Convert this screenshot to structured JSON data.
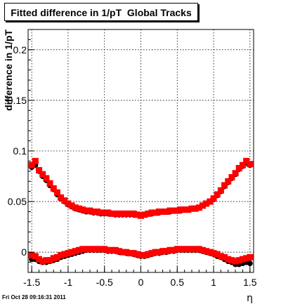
{
  "title": "Fitted difference in 1/pT  Global Tracks",
  "footer": "Fri Oct 28 09:16:31 2011",
  "chart_data": {
    "type": "scatter",
    "title": "Fitted difference in 1/pT  Global Tracks",
    "xlabel": "η",
    "ylabel": "difference in 1/pT",
    "xlim": [
      -1.55,
      1.55
    ],
    "ylim": [
      -0.02,
      0.22
    ],
    "xticks": [
      -1.5,
      -1,
      -0.5,
      0,
      0.5,
      1,
      1.5
    ],
    "xtick_labels": [
      "-1.5",
      "-1",
      "-0.5",
      "0",
      "0.5",
      "1",
      "1.5"
    ],
    "yticks": [
      0,
      0.05,
      0.1,
      0.15,
      0.2
    ],
    "ytick_labels": [
      "0",
      "0.05",
      "0.1",
      "0.15",
      "0.2"
    ],
    "grid": true,
    "x": [
      -1.5,
      -1.45,
      -1.4,
      -1.35,
      -1.3,
      -1.25,
      -1.2,
      -1.15,
      -1.1,
      -1.05,
      -1,
      -0.95,
      -0.9,
      -0.85,
      -0.8,
      -0.75,
      -0.7,
      -0.65,
      -0.6,
      -0.55,
      -0.5,
      -0.45,
      -0.4,
      -0.35,
      -0.3,
      -0.25,
      -0.2,
      -0.15,
      -0.1,
      -0.05,
      0,
      0.05,
      0.1,
      0.15,
      0.2,
      0.25,
      0.3,
      0.35,
      0.4,
      0.45,
      0.5,
      0.55,
      0.6,
      0.65,
      0.7,
      0.75,
      0.8,
      0.85,
      0.9,
      0.95,
      1,
      1.05,
      1.1,
      1.15,
      1.2,
      1.25,
      1.3,
      1.35,
      1.4,
      1.45,
      1.5
    ],
    "series": [
      {
        "color": "#000000",
        "marker": "circle",
        "values": [
          0.084,
          0.086,
          0.08,
          0.075,
          0.071,
          0.066,
          0.062,
          0.057,
          0.053,
          0.05,
          0.047,
          0.045,
          0.043,
          0.042,
          0.041,
          0.04,
          0.04,
          0.039,
          0.039,
          0.038,
          0.038,
          0.038,
          0.038,
          0.037,
          0.037,
          0.037,
          0.037,
          0.037,
          0.037,
          0.037,
          0.036,
          0.037,
          0.038,
          0.038,
          0.039,
          0.039,
          0.04,
          0.04,
          0.04,
          0.041,
          0.041,
          0.041,
          0.042,
          0.042,
          0.043,
          0.043,
          0.044,
          0.046,
          0.048,
          0.05,
          0.052,
          0.056,
          0.06,
          0.065,
          0.069,
          0.073,
          0.077,
          0.082,
          0.085,
          0.088,
          0.086
        ]
      },
      {
        "color": "#ff0000",
        "marker": "square",
        "values": [
          0.086,
          0.09,
          0.081,
          0.077,
          0.073,
          0.068,
          0.063,
          0.059,
          0.054,
          0.051,
          0.048,
          0.046,
          0.044,
          0.043,
          0.042,
          0.041,
          0.041,
          0.04,
          0.04,
          0.039,
          0.039,
          0.039,
          0.038,
          0.038,
          0.038,
          0.038,
          0.038,
          0.038,
          0.038,
          0.037,
          0.036,
          0.037,
          0.038,
          0.039,
          0.039,
          0.04,
          0.04,
          0.04,
          0.041,
          0.041,
          0.041,
          0.042,
          0.042,
          0.042,
          0.043,
          0.043,
          0.044,
          0.046,
          0.048,
          0.05,
          0.053,
          0.057,
          0.061,
          0.066,
          0.07,
          0.074,
          0.078,
          0.083,
          0.086,
          0.09,
          0.087
        ]
      },
      {
        "color": "#000000",
        "marker": "circle",
        "values": [
          -0.007,
          -0.007,
          -0.009,
          -0.01,
          -0.01,
          -0.009,
          -0.008,
          -0.007,
          -0.005,
          -0.004,
          -0.003,
          -0.002,
          -0.001,
          0,
          0.001,
          0.002,
          0.002,
          0.002,
          0.002,
          0.002,
          0.002,
          0.001,
          0.001,
          0.001,
          0,
          0,
          -0.001,
          -0.001,
          -0.002,
          -0.003,
          -0.004,
          -0.004,
          -0.003,
          -0.002,
          -0.001,
          -0.001,
          0,
          0,
          0.001,
          0.001,
          0.002,
          0.002,
          0.002,
          0.002,
          0.002,
          0.002,
          0.002,
          0.001,
          0,
          -0.001,
          -0.002,
          -0.004,
          -0.005,
          -0.007,
          -0.009,
          -0.01,
          -0.012,
          -0.012,
          -0.011,
          -0.01,
          -0.011
        ]
      },
      {
        "color": "#ff0000",
        "marker": "square",
        "values": [
          -0.003,
          -0.004,
          -0.007,
          -0.009,
          -0.008,
          -0.008,
          -0.006,
          -0.005,
          -0.003,
          -0.002,
          -0.001,
          0,
          0.001,
          0.002,
          0.003,
          0.003,
          0.003,
          0.003,
          0.003,
          0.003,
          0.003,
          0.002,
          0.002,
          0.002,
          0.001,
          0,
          0,
          -0.001,
          -0.001,
          -0.002,
          -0.003,
          -0.003,
          -0.002,
          -0.001,
          0,
          0,
          0.001,
          0.001,
          0.002,
          0.002,
          0.003,
          0.003,
          0.003,
          0.003,
          0.003,
          0.003,
          0.003,
          0.002,
          0.001,
          0,
          -0.001,
          -0.002,
          -0.004,
          -0.005,
          -0.007,
          -0.008,
          -0.009,
          -0.008,
          -0.007,
          -0.006,
          -0.005
        ]
      }
    ]
  }
}
